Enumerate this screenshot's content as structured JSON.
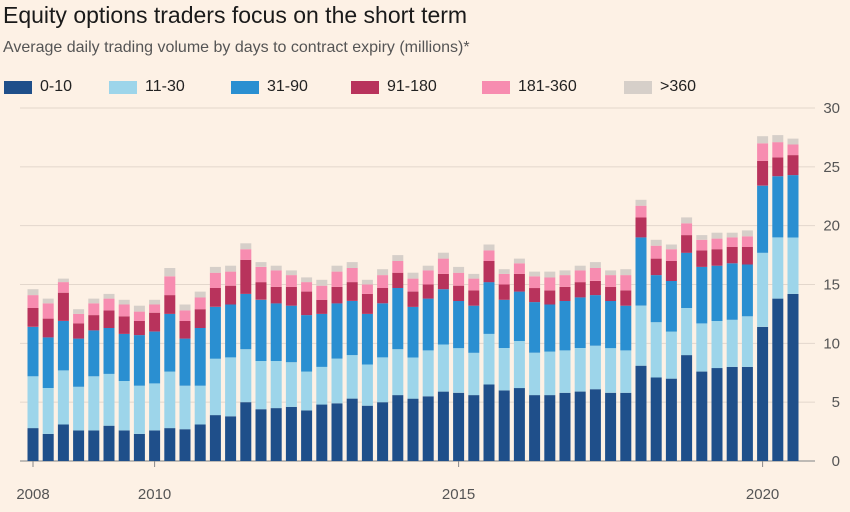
{
  "title": "Equity options traders focus on the short term",
  "subtitle": "Average daily trading volume by days to contract expiry (millions)*",
  "colors": {
    "background": "#fdf1e5",
    "grid": "#e3d7cc",
    "series": [
      "#1f4f8a",
      "#9dd5ea",
      "#2a8fd1",
      "#b8335c",
      "#f78cb0",
      "#d6cfc9"
    ]
  },
  "chart_data": {
    "type": "bar",
    "stacked": true,
    "title": "Equity options traders focus on the short term",
    "subtitle": "Average daily trading volume by days to contract expiry (millions)*",
    "ylim": [
      0,
      30
    ],
    "yticks": [
      0,
      5,
      10,
      15,
      20,
      25,
      30
    ],
    "y_axis_side": "right",
    "grid": true,
    "legend_position": "top",
    "x_start": "2008-01",
    "x_interval": "month-quarterly",
    "xtick_labels": [
      {
        "label": "2008",
        "index": 0
      },
      {
        "label": "2010",
        "index": 8
      },
      {
        "label": "2015",
        "index": 28
      },
      {
        "label": "2020",
        "index": 48
      }
    ],
    "series": [
      {
        "name": "0-10",
        "values": [
          2.8,
          2.3,
          3.1,
          2.6,
          2.6,
          3.0,
          2.6,
          2.3,
          2.6,
          2.8,
          2.7,
          3.1,
          3.9,
          3.8,
          5.0,
          4.4,
          4.5,
          4.6,
          4.3,
          4.8,
          4.9,
          5.3,
          4.7,
          5.0,
          5.6,
          5.3,
          5.5,
          5.9,
          5.8,
          5.6,
          6.5,
          6.0,
          6.2,
          5.6,
          5.6,
          5.8,
          5.9,
          6.1,
          5.8,
          5.8,
          8.1,
          7.1,
          7.0,
          9.0,
          7.6,
          7.9,
          8.0,
          8.0,
          11.4,
          13.8,
          14.2
        ]
      },
      {
        "name": "11-30",
        "values": [
          4.4,
          3.9,
          4.6,
          3.7,
          4.6,
          4.4,
          4.2,
          4.1,
          4.0,
          4.8,
          3.7,
          3.3,
          4.8,
          5.0,
          4.5,
          4.1,
          4.0,
          3.8,
          3.3,
          3.2,
          3.8,
          3.7,
          3.5,
          3.8,
          3.9,
          3.5,
          3.9,
          4.0,
          3.8,
          3.6,
          4.3,
          3.6,
          4.0,
          3.6,
          3.7,
          3.6,
          3.7,
          3.7,
          3.8,
          3.6,
          5.1,
          4.7,
          4.0,
          4.0,
          4.1,
          4.0,
          4.0,
          4.3,
          6.3,
          5.2,
          4.8
        ]
      },
      {
        "name": "31-90",
        "values": [
          4.2,
          4.3,
          4.2,
          4.1,
          3.9,
          3.9,
          4.0,
          4.3,
          4.4,
          4.9,
          4.0,
          4.9,
          4.4,
          4.5,
          4.7,
          5.2,
          4.9,
          4.8,
          4.8,
          4.5,
          4.7,
          4.6,
          4.3,
          4.6,
          5.2,
          4.3,
          4.4,
          4.7,
          4.0,
          4.0,
          4.4,
          4.1,
          4.2,
          4.3,
          4.0,
          4.2,
          4.3,
          4.3,
          4.0,
          3.8,
          5.8,
          4.0,
          4.3,
          4.7,
          4.8,
          4.7,
          4.8,
          4.4,
          5.7,
          5.2,
          5.3
        ]
      },
      {
        "name": "91-180",
        "values": [
          1.6,
          1.6,
          2.4,
          1.3,
          1.3,
          1.5,
          1.5,
          1.2,
          1.6,
          1.6,
          1.5,
          1.6,
          1.6,
          1.6,
          2.9,
          1.5,
          1.4,
          1.6,
          2.0,
          1.2,
          1.4,
          1.6,
          1.7,
          1.3,
          1.3,
          1.3,
          1.2,
          1.3,
          1.3,
          1.3,
          1.8,
          1.3,
          1.5,
          1.2,
          1.2,
          1.2,
          1.3,
          1.2,
          1.2,
          1.3,
          1.7,
          1.4,
          1.7,
          1.5,
          1.4,
          1.4,
          1.4,
          1.5,
          2.1,
          1.6,
          1.7
        ]
      },
      {
        "name": "181-360",
        "values": [
          1.1,
          1.3,
          0.9,
          0.8,
          1.0,
          1.0,
          1.0,
          0.8,
          0.7,
          1.6,
          0.9,
          1.0,
          1.3,
          1.2,
          0.9,
          1.3,
          1.4,
          1.0,
          0.8,
          1.2,
          1.3,
          1.2,
          0.8,
          1.1,
          1.0,
          1.1,
          1.2,
          1.3,
          1.1,
          1.0,
          0.9,
          0.9,
          0.9,
          1.0,
          1.1,
          1.0,
          1.0,
          1.1,
          1.0,
          1.3,
          1.0,
          1.1,
          1.0,
          1.0,
          0.9,
          0.9,
          0.8,
          0.9,
          1.5,
          1.3,
          0.9
        ]
      },
      {
        "name": ">360",
        "values": [
          0.5,
          0.4,
          0.3,
          0.4,
          0.4,
          0.4,
          0.4,
          0.5,
          0.4,
          0.7,
          0.5,
          0.5,
          0.5,
          0.5,
          0.5,
          0.4,
          0.4,
          0.4,
          0.4,
          0.5,
          0.5,
          0.5,
          0.4,
          0.5,
          0.5,
          0.5,
          0.4,
          0.5,
          0.5,
          0.4,
          0.5,
          0.4,
          0.4,
          0.4,
          0.5,
          0.4,
          0.4,
          0.5,
          0.4,
          0.5,
          0.5,
          0.5,
          0.4,
          0.5,
          0.4,
          0.5,
          0.4,
          0.5,
          0.6,
          0.6,
          0.5
        ]
      }
    ]
  }
}
